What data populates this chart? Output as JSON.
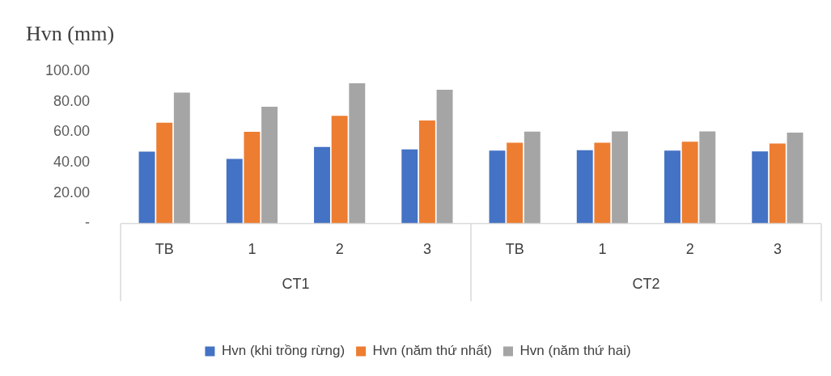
{
  "chart_data": {
    "type": "bar",
    "ylabel": "Hvn (mm)",
    "categories": [
      "TB",
      "1",
      "2",
      "3",
      "TB",
      "1",
      "2",
      "3"
    ],
    "annotations": [
      "CT1",
      "CT2"
    ],
    "series": [
      {
        "name": "Hvn (khi trồng rừng)",
        "color": "#4472c4",
        "values": [
          47.2,
          42.4,
          50.2,
          48.6,
          47.8,
          48.1,
          47.8,
          47.3
        ]
      },
      {
        "name": "Hvn (năm thứ nhất)",
        "color": "#ed7d31",
        "values": [
          66.2,
          60.2,
          70.7,
          67.6,
          53.0,
          53.0,
          53.7,
          52.5
        ]
      },
      {
        "name": "Hvn (năm thứ hai)",
        "color": "#a5a5a5",
        "values": [
          85.9,
          76.7,
          92.0,
          87.8,
          60.3,
          60.5,
          60.5,
          59.7
        ]
      }
    ],
    "ylim": [
      0,
      100
    ],
    "yticks": [
      {
        "value": 0,
        "label": "-"
      },
      {
        "value": 20,
        "label": "20.00"
      },
      {
        "value": 40,
        "label": "40.00"
      },
      {
        "value": 60,
        "label": "60.00"
      },
      {
        "value": 80,
        "label": "80.00"
      },
      {
        "value": 100,
        "label": "100.00"
      }
    ],
    "grid": false,
    "legend": "bottom"
  }
}
